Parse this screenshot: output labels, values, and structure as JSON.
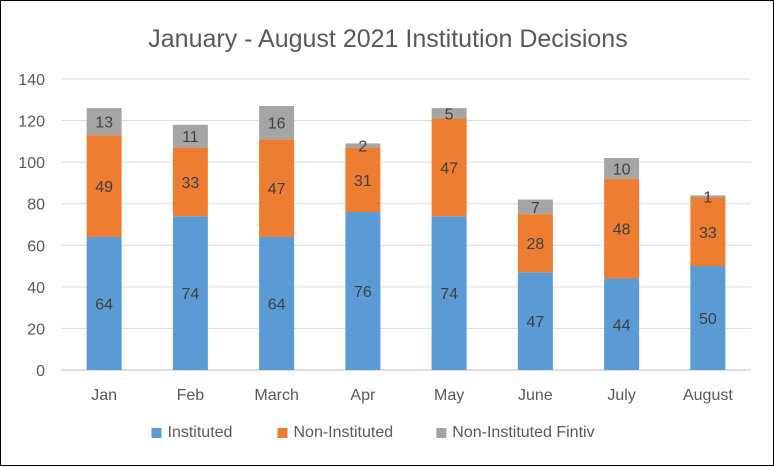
{
  "chart_data": {
    "type": "bar",
    "stacked": true,
    "title": "January - August 2021 Institution Decisions",
    "xlabel": "",
    "ylabel": "",
    "categories": [
      "Jan",
      "Feb",
      "March",
      "Apr",
      "May",
      "June",
      "July",
      "August"
    ],
    "series": [
      {
        "name": "Instituted",
        "color": "#5B9BD5",
        "values": [
          64,
          74,
          64,
          76,
          74,
          47,
          44,
          50
        ]
      },
      {
        "name": "Non-Instituted",
        "color": "#ED7D31",
        "values": [
          49,
          33,
          47,
          31,
          47,
          28,
          48,
          33
        ]
      },
      {
        "name": "Non-Instituted Fintiv",
        "color": "#A5A5A5",
        "values": [
          13,
          11,
          16,
          2,
          5,
          7,
          10,
          1
        ]
      }
    ],
    "ylim": [
      0,
      140
    ],
    "yticks": [
      0,
      20,
      40,
      60,
      80,
      100,
      120,
      140
    ],
    "grid": true,
    "legend_position": "bottom",
    "data_labels": true,
    "gridline_color": "#D9D9D9",
    "axis_line_color": "#BFBFBF"
  }
}
